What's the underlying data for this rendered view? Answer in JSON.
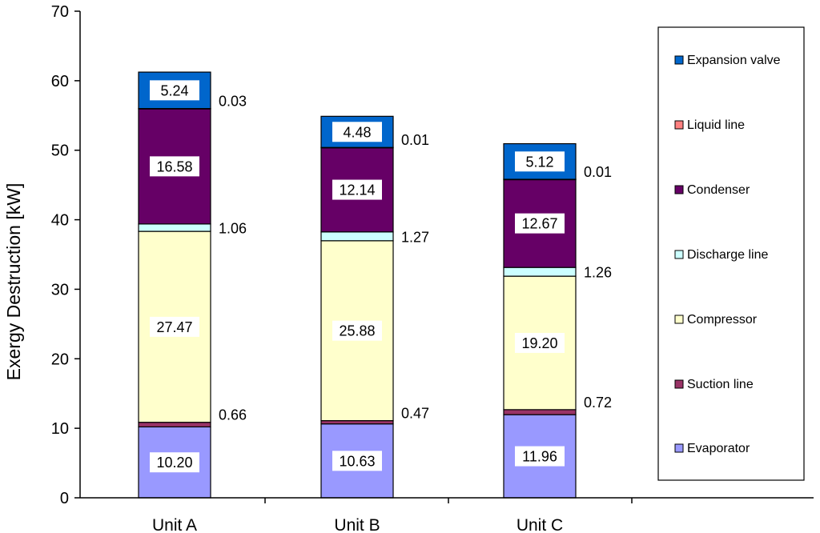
{
  "chart_data": {
    "type": "stacked-bar",
    "title": "",
    "xlabel": "",
    "ylabel": "Exergy Destruction  [kW]",
    "ylim": [
      0,
      70
    ],
    "yticks": [
      0,
      10,
      20,
      30,
      40,
      50,
      60,
      70
    ],
    "grid": false,
    "legend_position": "right",
    "categories": [
      "Unit A",
      "Unit B",
      "Unit C"
    ],
    "series": [
      {
        "name": "Evaporator",
        "color": "#9999ff",
        "values": [
          10.2,
          10.63,
          11.96
        ],
        "labels": [
          "10.20",
          "10.63",
          "11.96"
        ],
        "label_style": "boxed-inside"
      },
      {
        "name": "Suction line",
        "color": "#993366",
        "values": [
          0.66,
          0.47,
          0.72
        ],
        "labels": [
          "0.66",
          "0.47",
          "0.72"
        ],
        "label_style": "outside-right"
      },
      {
        "name": "Compressor",
        "color": "#ffffcc",
        "values": [
          27.47,
          25.88,
          19.2
        ],
        "labels": [
          "27.47",
          "25.88",
          "19.20"
        ],
        "label_style": "boxed-inside"
      },
      {
        "name": "Discharge line",
        "color": "#ccffff",
        "values": [
          1.06,
          1.27,
          1.26
        ],
        "labels": [
          "1.06",
          "1.27",
          "1.26"
        ],
        "label_style": "outside-right"
      },
      {
        "name": "Condenser",
        "color": "#660066",
        "values": [
          16.58,
          12.14,
          12.67
        ],
        "labels": [
          "16.58",
          "12.14",
          "12.67"
        ],
        "label_style": "boxed-inside"
      },
      {
        "name": "Liquid line",
        "color": "#ff8080",
        "values": [
          0.03,
          0.01,
          0.01
        ],
        "labels": [
          "0.03",
          "0.01",
          "0.01"
        ],
        "label_style": "outside-right"
      },
      {
        "name": "Expansion valve",
        "color": "#0066cc",
        "values": [
          5.24,
          4.48,
          5.12
        ],
        "labels": [
          "5.24",
          "4.48",
          "5.12"
        ],
        "label_style": "boxed-inside"
      }
    ]
  }
}
